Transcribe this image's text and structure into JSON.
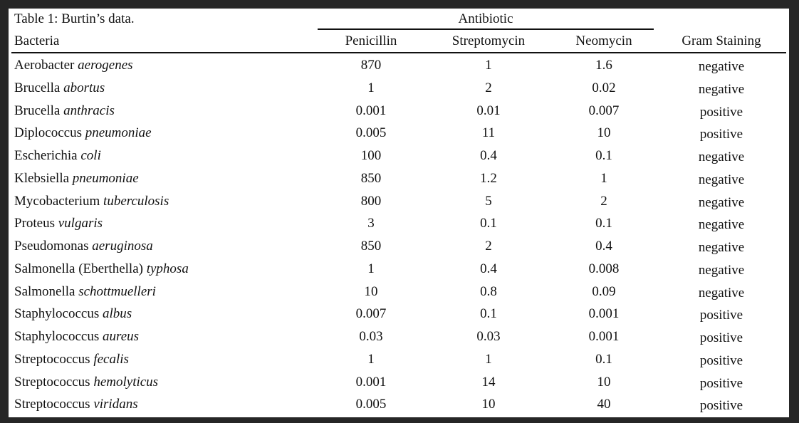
{
  "caption": "Table 1: Burtin’s data.",
  "group_header": "Antibiotic",
  "columns": {
    "bacteria": "Bacteria",
    "penicillin": "Penicillin",
    "streptomycin": "Streptomycin",
    "neomycin": "Neomycin",
    "gram": "Gram Staining"
  },
  "rows": [
    {
      "genus": "Aerobacter",
      "species": "aerogenes",
      "penicillin": "870",
      "streptomycin": "1",
      "neomycin": "1.6",
      "gram": "negative"
    },
    {
      "genus": "Brucella",
      "species": "abortus",
      "penicillin": "1",
      "streptomycin": "2",
      "neomycin": "0.02",
      "gram": "negative"
    },
    {
      "genus": "Brucella",
      "species": "anthracis",
      "penicillin": "0.001",
      "streptomycin": "0.01",
      "neomycin": "0.007",
      "gram": "positive"
    },
    {
      "genus": "Diplococcus",
      "species": "pneumoniae",
      "penicillin": "0.005",
      "streptomycin": "11",
      "neomycin": "10",
      "gram": "positive"
    },
    {
      "genus": "Escherichia",
      "species": "coli",
      "penicillin": "100",
      "streptomycin": "0.4",
      "neomycin": "0.1",
      "gram": "negative"
    },
    {
      "genus": "Klebsiella",
      "species": "pneumoniae",
      "penicillin": "850",
      "streptomycin": "1.2",
      "neomycin": "1",
      "gram": "negative"
    },
    {
      "genus": "Mycobacterium",
      "species": "tuberculosis",
      "penicillin": "800",
      "streptomycin": "5",
      "neomycin": "2",
      "gram": "negative"
    },
    {
      "genus": "Proteus",
      "species": "vulgaris",
      "penicillin": "3",
      "streptomycin": "0.1",
      "neomycin": "0.1",
      "gram": "negative"
    },
    {
      "genus": "Pseudomonas",
      "species": "aeruginosa",
      "penicillin": "850",
      "streptomycin": "2",
      "neomycin": "0.4",
      "gram": "negative"
    },
    {
      "genus": "Salmonella (Eberthella)",
      "species": "typhosa",
      "penicillin": "1",
      "streptomycin": "0.4",
      "neomycin": "0.008",
      "gram": "negative"
    },
    {
      "genus": "Salmonella",
      "species": "schottmuelleri",
      "penicillin": "10",
      "streptomycin": "0.8",
      "neomycin": "0.09",
      "gram": "negative"
    },
    {
      "genus": "Staphylococcus",
      "species": "albus",
      "penicillin": "0.007",
      "streptomycin": "0.1",
      "neomycin": "0.001",
      "gram": "positive"
    },
    {
      "genus": "Staphylococcus",
      "species": "aureus",
      "penicillin": "0.03",
      "streptomycin": "0.03",
      "neomycin": "0.001",
      "gram": "positive"
    },
    {
      "genus": "Streptococcus",
      "species": "fecalis",
      "penicillin": "1",
      "streptomycin": "1",
      "neomycin": "0.1",
      "gram": "positive"
    },
    {
      "genus": "Streptococcus",
      "species": "hemolyticus",
      "penicillin": "0.001",
      "streptomycin": "14",
      "neomycin": "10",
      "gram": "positive"
    },
    {
      "genus": "Streptococcus",
      "species": "viridans",
      "penicillin": "0.005",
      "streptomycin": "10",
      "neomycin": "40",
      "gram": "positive"
    }
  ]
}
